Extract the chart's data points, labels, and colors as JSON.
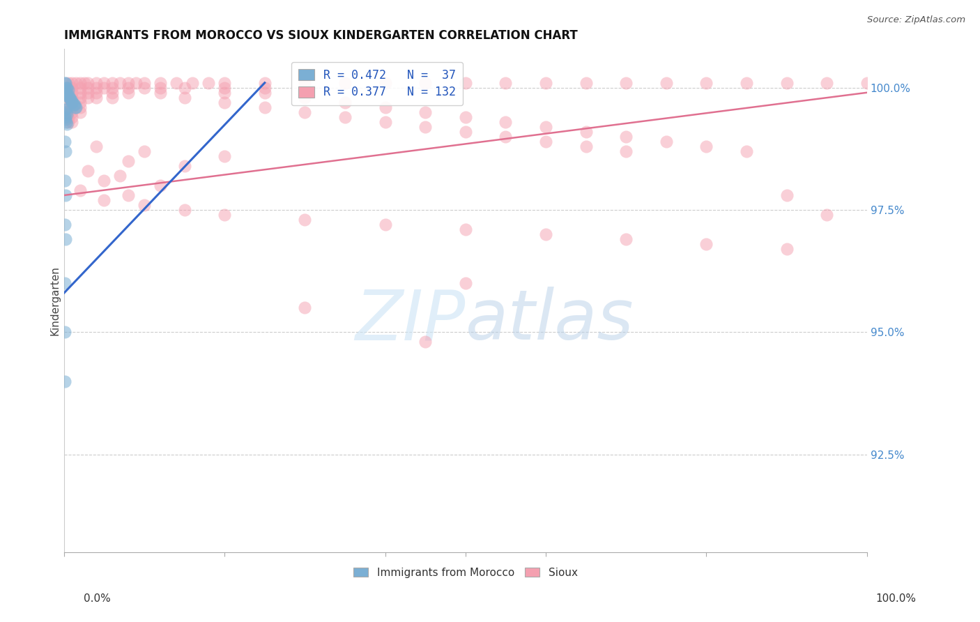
{
  "title": "IMMIGRANTS FROM MOROCCO VS SIOUX KINDERGARTEN CORRELATION CHART",
  "source": "Source: ZipAtlas.com",
  "ylabel": "Kindergarten",
  "ytick_labels": [
    "100.0%",
    "97.5%",
    "95.0%",
    "92.5%"
  ],
  "ytick_values": [
    1.0,
    0.975,
    0.95,
    0.925
  ],
  "xlim": [
    0.0,
    1.0
  ],
  "ylim": [
    0.905,
    1.008
  ],
  "legend_entries": [
    {
      "label": "R = 0.472   N =  37",
      "color": "#7bafd4"
    },
    {
      "label": "R = 0.377   N = 132",
      "color": "#f4a0b0"
    }
  ],
  "legend_label_bottom": [
    "Immigrants from Morocco",
    "Sioux"
  ],
  "background_color": "#ffffff",
  "grid_color": "#cccccc",
  "morocco_color": "#7bafd4",
  "sioux_color": "#f4a0b0",
  "morocco_line_color": "#3366cc",
  "sioux_line_color": "#e07090",
  "morocco_line": [
    0.0,
    0.25,
    0.958,
    1.001
  ],
  "sioux_line": [
    0.0,
    1.0,
    0.978,
    0.999
  ],
  "morocco_points": [
    [
      0.001,
      1.001
    ],
    [
      0.002,
      1.001
    ],
    [
      0.003,
      1.0
    ],
    [
      0.004,
      1.0
    ],
    [
      0.005,
      0.9995
    ],
    [
      0.001,
      0.9995
    ],
    [
      0.002,
      0.999
    ],
    [
      0.003,
      0.999
    ],
    [
      0.004,
      0.9985
    ],
    [
      0.005,
      0.9985
    ],
    [
      0.006,
      0.998
    ],
    [
      0.007,
      0.998
    ],
    [
      0.008,
      0.9975
    ],
    [
      0.009,
      0.9975
    ],
    [
      0.01,
      0.997
    ],
    [
      0.011,
      0.997
    ],
    [
      0.012,
      0.9965
    ],
    [
      0.013,
      0.9965
    ],
    [
      0.014,
      0.996
    ],
    [
      0.015,
      0.996
    ],
    [
      0.001,
      0.9955
    ],
    [
      0.002,
      0.9955
    ],
    [
      0.003,
      0.995
    ],
    [
      0.004,
      0.9945
    ],
    [
      0.001,
      0.994
    ],
    [
      0.002,
      0.9935
    ],
    [
      0.003,
      0.993
    ],
    [
      0.004,
      0.9925
    ],
    [
      0.001,
      0.989
    ],
    [
      0.002,
      0.987
    ],
    [
      0.001,
      0.981
    ],
    [
      0.002,
      0.978
    ],
    [
      0.001,
      0.972
    ],
    [
      0.002,
      0.969
    ],
    [
      0.001,
      0.96
    ],
    [
      0.001,
      0.95
    ],
    [
      0.001,
      0.94
    ]
  ],
  "sioux_points": [
    [
      0.005,
      1.001
    ],
    [
      0.01,
      1.001
    ],
    [
      0.015,
      1.001
    ],
    [
      0.02,
      1.001
    ],
    [
      0.025,
      1.001
    ],
    [
      0.03,
      1.001
    ],
    [
      0.04,
      1.001
    ],
    [
      0.05,
      1.001
    ],
    [
      0.06,
      1.001
    ],
    [
      0.07,
      1.001
    ],
    [
      0.08,
      1.001
    ],
    [
      0.09,
      1.001
    ],
    [
      0.1,
      1.001
    ],
    [
      0.12,
      1.001
    ],
    [
      0.14,
      1.001
    ],
    [
      0.16,
      1.001
    ],
    [
      0.18,
      1.001
    ],
    [
      0.2,
      1.001
    ],
    [
      0.25,
      1.001
    ],
    [
      0.3,
      1.001
    ],
    [
      0.35,
      1.001
    ],
    [
      0.4,
      1.001
    ],
    [
      0.45,
      1.001
    ],
    [
      0.5,
      1.001
    ],
    [
      0.55,
      1.001
    ],
    [
      0.6,
      1.001
    ],
    [
      0.65,
      1.001
    ],
    [
      0.7,
      1.001
    ],
    [
      0.75,
      1.001
    ],
    [
      0.8,
      1.001
    ],
    [
      0.85,
      1.001
    ],
    [
      0.9,
      1.001
    ],
    [
      0.95,
      1.001
    ],
    [
      1.0,
      1.001
    ],
    [
      0.005,
      1.0
    ],
    [
      0.01,
      1.0
    ],
    [
      0.02,
      1.0
    ],
    [
      0.03,
      1.0
    ],
    [
      0.04,
      1.0
    ],
    [
      0.05,
      1.0
    ],
    [
      0.06,
      1.0
    ],
    [
      0.08,
      1.0
    ],
    [
      0.1,
      1.0
    ],
    [
      0.12,
      1.0
    ],
    [
      0.15,
      1.0
    ],
    [
      0.2,
      1.0
    ],
    [
      0.25,
      1.0
    ],
    [
      0.005,
      0.999
    ],
    [
      0.01,
      0.999
    ],
    [
      0.02,
      0.999
    ],
    [
      0.03,
      0.999
    ],
    [
      0.04,
      0.999
    ],
    [
      0.06,
      0.999
    ],
    [
      0.08,
      0.999
    ],
    [
      0.005,
      0.998
    ],
    [
      0.01,
      0.998
    ],
    [
      0.02,
      0.998
    ],
    [
      0.03,
      0.998
    ],
    [
      0.04,
      0.998
    ],
    [
      0.06,
      0.998
    ],
    [
      0.005,
      0.997
    ],
    [
      0.01,
      0.997
    ],
    [
      0.02,
      0.997
    ],
    [
      0.005,
      0.996
    ],
    [
      0.01,
      0.996
    ],
    [
      0.02,
      0.996
    ],
    [
      0.005,
      0.995
    ],
    [
      0.01,
      0.995
    ],
    [
      0.02,
      0.995
    ],
    [
      0.005,
      0.994
    ],
    [
      0.01,
      0.994
    ],
    [
      0.005,
      0.993
    ],
    [
      0.01,
      0.993
    ],
    [
      0.12,
      0.999
    ],
    [
      0.2,
      0.999
    ],
    [
      0.25,
      0.999
    ],
    [
      0.15,
      0.998
    ],
    [
      0.3,
      0.998
    ],
    [
      0.2,
      0.997
    ],
    [
      0.35,
      0.997
    ],
    [
      0.25,
      0.996
    ],
    [
      0.4,
      0.996
    ],
    [
      0.3,
      0.995
    ],
    [
      0.45,
      0.995
    ],
    [
      0.35,
      0.994
    ],
    [
      0.5,
      0.994
    ],
    [
      0.4,
      0.993
    ],
    [
      0.55,
      0.993
    ],
    [
      0.45,
      0.992
    ],
    [
      0.6,
      0.992
    ],
    [
      0.5,
      0.991
    ],
    [
      0.65,
      0.991
    ],
    [
      0.55,
      0.99
    ],
    [
      0.7,
      0.99
    ],
    [
      0.6,
      0.989
    ],
    [
      0.75,
      0.989
    ],
    [
      0.65,
      0.988
    ],
    [
      0.8,
      0.988
    ],
    [
      0.7,
      0.987
    ],
    [
      0.85,
      0.987
    ],
    [
      0.04,
      0.988
    ],
    [
      0.1,
      0.987
    ],
    [
      0.2,
      0.986
    ],
    [
      0.08,
      0.985
    ],
    [
      0.15,
      0.984
    ],
    [
      0.03,
      0.983
    ],
    [
      0.07,
      0.982
    ],
    [
      0.05,
      0.981
    ],
    [
      0.12,
      0.98
    ],
    [
      0.02,
      0.979
    ],
    [
      0.08,
      0.978
    ],
    [
      0.05,
      0.977
    ],
    [
      0.1,
      0.976
    ],
    [
      0.15,
      0.975
    ],
    [
      0.2,
      0.974
    ],
    [
      0.3,
      0.973
    ],
    [
      0.4,
      0.972
    ],
    [
      0.5,
      0.971
    ],
    [
      0.6,
      0.97
    ],
    [
      0.7,
      0.969
    ],
    [
      0.8,
      0.968
    ],
    [
      0.9,
      0.967
    ],
    [
      0.95,
      0.974
    ],
    [
      0.5,
      0.96
    ],
    [
      0.3,
      0.955
    ],
    [
      0.45,
      0.948
    ],
    [
      0.9,
      0.978
    ]
  ]
}
